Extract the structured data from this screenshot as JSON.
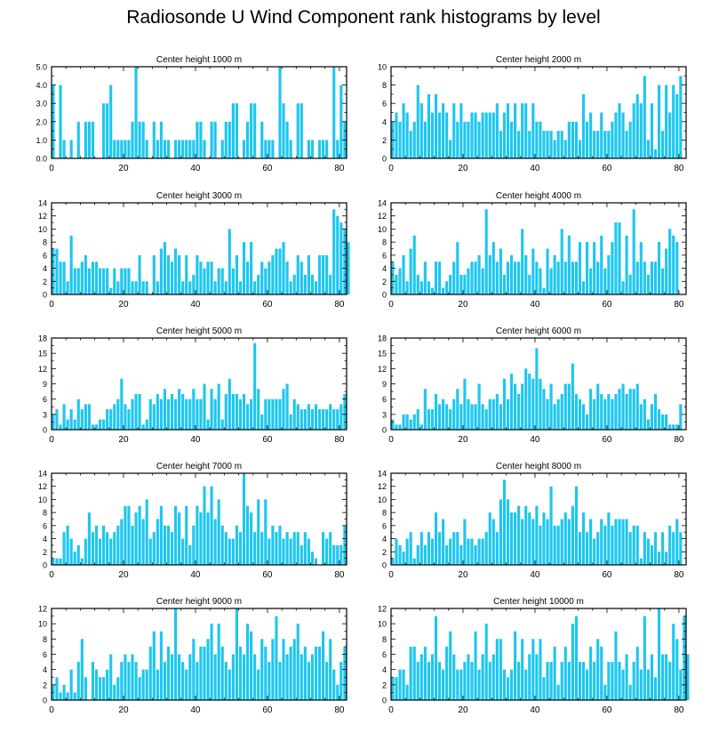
{
  "figure": {
    "title": "Radiosonde U Wind Component rank histograms by level",
    "bar_color": "#1ec6ef"
  },
  "chart_data": [
    {
      "type": "bar",
      "title": "Center height 1000 m",
      "xlim": [
        0,
        82
      ],
      "ylim": [
        0,
        5
      ],
      "xticks": [
        0,
        20,
        40,
        60,
        80
      ],
      "yticks": [
        0,
        1,
        2,
        3,
        4,
        5
      ],
      "ytick_labels": [
        "0.0",
        "1.0",
        "2.0",
        "3.0",
        "4.0",
        "5.0"
      ],
      "values": [
        4,
        0,
        4,
        1,
        0,
        1,
        0,
        2,
        0,
        2,
        2,
        2,
        0,
        0,
        3,
        3,
        4,
        1,
        1,
        1,
        1,
        1,
        2,
        5,
        2,
        2,
        1,
        0,
        2,
        1,
        2,
        1,
        1,
        0,
        1,
        1,
        1,
        1,
        1,
        1,
        2,
        2,
        1,
        0,
        2,
        2,
        0,
        1,
        2,
        2,
        3,
        3,
        0,
        1,
        2,
        3,
        3,
        0,
        2,
        1,
        1,
        1,
        0,
        5,
        3,
        2,
        1,
        0,
        3,
        3,
        0,
        1,
        1,
        0,
        1,
        1,
        1,
        0,
        5,
        1,
        4,
        2
      ]
    },
    {
      "type": "bar",
      "title": "Center height 2000 m",
      "xlim": [
        0,
        82
      ],
      "ylim": [
        0,
        10
      ],
      "xticks": [
        0,
        20,
        40,
        60,
        80
      ],
      "yticks": [
        0,
        2,
        4,
        6,
        8,
        10
      ],
      "values": [
        4,
        5,
        4,
        6,
        5,
        3,
        4,
        8,
        6,
        4,
        7,
        5,
        7,
        5,
        6,
        5,
        2,
        6,
        4,
        6,
        4,
        4,
        5,
        5,
        4,
        5,
        5,
        5,
        5,
        6,
        3,
        5,
        6,
        4,
        6,
        3,
        6,
        6,
        3,
        6,
        4,
        4,
        3,
        3,
        3,
        2,
        3,
        3,
        2,
        4,
        4,
        4,
        2,
        7,
        4,
        5,
        3,
        3,
        5,
        3,
        3,
        4,
        5,
        6,
        5,
        3,
        4,
        6,
        7,
        6,
        9,
        2,
        6,
        1,
        8,
        3,
        8,
        5,
        8,
        7,
        9
      ]
    },
    {
      "type": "bar",
      "title": "Center height 3000 m",
      "xlim": [
        0,
        82
      ],
      "ylim": [
        0,
        14
      ],
      "xticks": [
        0,
        20,
        40,
        60,
        80
      ],
      "yticks": [
        0,
        2,
        4,
        6,
        8,
        10,
        12,
        14
      ],
      "values": [
        7,
        7,
        5,
        5,
        2,
        9,
        4,
        4,
        5,
        6,
        4,
        5,
        5,
        4,
        4,
        4,
        1,
        4,
        2,
        4,
        4,
        4,
        2,
        2,
        6,
        2,
        2,
        0,
        6,
        2,
        7,
        8,
        6,
        5,
        7,
        6,
        2,
        6,
        2,
        3,
        6,
        5,
        4,
        5,
        5,
        2,
        4,
        4,
        2,
        10,
        4,
        6,
        2,
        8,
        5,
        8,
        2,
        3,
        5,
        4,
        5,
        6,
        7,
        7,
        8,
        5,
        2,
        3,
        6,
        5,
        3,
        6,
        3,
        2,
        6,
        6,
        6,
        3,
        13,
        12,
        11,
        10,
        8
      ]
    },
    {
      "type": "bar",
      "title": "Center height 4000 m",
      "xlim": [
        0,
        82
      ],
      "ylim": [
        0,
        14
      ],
      "xticks": [
        0,
        20,
        40,
        60,
        80
      ],
      "yticks": [
        0,
        2,
        4,
        6,
        8,
        10,
        12,
        14
      ],
      "values": [
        5,
        3,
        4,
        6,
        2,
        7,
        9,
        3,
        2,
        5,
        2,
        1,
        5,
        5,
        1,
        2,
        3,
        5,
        8,
        3,
        3,
        4,
        5,
        5,
        6,
        4,
        13,
        6,
        8,
        5,
        7,
        3,
        5,
        6,
        5,
        5,
        10,
        6,
        3,
        7,
        5,
        4,
        1,
        7,
        4,
        6,
        5,
        10,
        5,
        9,
        5,
        5,
        8,
        2,
        8,
        4,
        8,
        5,
        9,
        4,
        6,
        8,
        11,
        11,
        2,
        9,
        3,
        13,
        5,
        8,
        5,
        3,
        5,
        5,
        8,
        4,
        7,
        10,
        9,
        8
      ]
    },
    {
      "type": "bar",
      "title": "Center height 5000 m",
      "xlim": [
        0,
        82
      ],
      "ylim": [
        0,
        18
      ],
      "xticks": [
        0,
        20,
        40,
        60,
        80
      ],
      "yticks": [
        0,
        3,
        6,
        9,
        12,
        15,
        18
      ],
      "values": [
        3,
        4,
        1,
        5,
        2,
        4,
        2,
        6,
        4,
        5,
        5,
        1,
        1,
        2,
        2,
        4,
        4,
        5,
        6,
        10,
        5,
        4,
        6,
        7,
        7,
        1,
        2,
        6,
        5,
        7,
        6,
        8,
        6,
        7,
        6,
        8,
        7,
        6,
        6,
        8,
        6,
        6,
        9,
        2,
        8,
        6,
        9,
        2,
        7,
        10,
        7,
        7,
        6,
        7,
        5,
        6,
        17,
        8,
        3,
        6,
        6,
        6,
        6,
        6,
        8,
        9,
        3,
        6,
        5,
        4,
        4,
        5,
        4,
        5,
        4,
        4,
        4,
        5,
        4,
        4,
        5,
        7
      ]
    },
    {
      "type": "bar",
      "title": "Center height 6000 m",
      "xlim": [
        0,
        82
      ],
      "ylim": [
        0,
        18
      ],
      "xticks": [
        0,
        20,
        40,
        60,
        80
      ],
      "yticks": [
        0,
        3,
        6,
        9,
        12,
        15,
        18
      ],
      "values": [
        2,
        1,
        1,
        3,
        3,
        2,
        3,
        4,
        1,
        8,
        4,
        4,
        7,
        5,
        6,
        5,
        4,
        6,
        8,
        5,
        10,
        6,
        5,
        5,
        9,
        5,
        4,
        6,
        6,
        7,
        5,
        10,
        6,
        11,
        9,
        7,
        9,
        12,
        11,
        10,
        16,
        10,
        8,
        6,
        9,
        5,
        6,
        7,
        9,
        9,
        13,
        7,
        6,
        5,
        3,
        8,
        6,
        9,
        7,
        6,
        7,
        6,
        7,
        8,
        9,
        7,
        8,
        8,
        9,
        5,
        6,
        2,
        5,
        7,
        4,
        3,
        3,
        1,
        1,
        1,
        5
      ]
    },
    {
      "type": "bar",
      "title": "Center height 7000 m",
      "xlim": [
        0,
        82
      ],
      "ylim": [
        0,
        14
      ],
      "xticks": [
        0,
        20,
        40,
        60,
        80
      ],
      "yticks": [
        0,
        2,
        4,
        6,
        8,
        10,
        12,
        14
      ],
      "values": [
        1,
        1,
        1,
        5,
        6,
        4,
        2,
        3,
        1,
        4,
        8,
        5,
        6,
        4,
        6,
        5,
        4,
        5,
        6,
        7,
        9,
        9,
        6,
        8,
        9,
        7,
        10,
        4,
        5,
        7,
        9,
        6,
        6,
        5,
        9,
        8,
        4,
        9,
        3,
        6,
        9,
        8,
        12,
        8,
        12,
        7,
        10,
        6,
        5,
        4,
        4,
        6,
        5,
        14,
        9,
        8,
        5,
        10,
        5,
        10,
        4,
        6,
        5,
        6,
        4,
        5,
        4,
        5,
        5,
        3,
        5,
        4,
        2,
        1,
        0,
        5,
        4,
        5,
        3,
        3,
        3,
        6
      ]
    },
    {
      "type": "bar",
      "title": "Center height 8000 m",
      "xlim": [
        0,
        82
      ],
      "ylim": [
        0,
        14
      ],
      "xticks": [
        0,
        20,
        40,
        60,
        80
      ],
      "yticks": [
        0,
        2,
        4,
        6,
        8,
        10,
        12,
        14
      ],
      "values": [
        1,
        4,
        3,
        2,
        4,
        5,
        1,
        3,
        5,
        3,
        5,
        4,
        8,
        5,
        7,
        3,
        4,
        5,
        5,
        3,
        7,
        4,
        4,
        3,
        4,
        4,
        5,
        8,
        7,
        5,
        10,
        13,
        10,
        8,
        8,
        9,
        7,
        9,
        8,
        7,
        9,
        6,
        8,
        7,
        12,
        6,
        6,
        7,
        8,
        7,
        9,
        12,
        5,
        8,
        5,
        7,
        4,
        5,
        7,
        6,
        8,
        6,
        7,
        7,
        7,
        7,
        5,
        6,
        6,
        1,
        5,
        4,
        3,
        5,
        2,
        5,
        2,
        6,
        5,
        7,
        5
      ]
    },
    {
      "type": "bar",
      "title": "Center height 9000 m",
      "xlim": [
        0,
        82
      ],
      "ylim": [
        0,
        12
      ],
      "xticks": [
        0,
        20,
        40,
        60,
        80
      ],
      "yticks": [
        0,
        2,
        4,
        6,
        8,
        10,
        12
      ],
      "values": [
        2,
        3,
        1,
        2,
        1,
        4,
        1,
        5,
        8,
        3,
        0,
        5,
        4,
        3,
        3,
        4,
        6,
        2,
        3,
        5,
        6,
        5,
        6,
        5,
        3,
        4,
        4,
        7,
        9,
        4,
        9,
        5,
        7,
        6,
        12,
        6,
        5,
        4,
        6,
        8,
        5,
        7,
        7,
        8,
        10,
        6,
        10,
        7,
        5,
        4,
        6,
        12,
        7,
        6,
        10,
        9,
        6,
        4,
        8,
        7,
        5,
        8,
        11,
        5,
        8,
        6,
        7,
        8,
        10,
        6,
        7,
        5,
        6,
        7,
        7,
        9,
        5,
        8,
        4,
        2,
        5,
        7
      ]
    },
    {
      "type": "bar",
      "title": "Center height 10000 m",
      "xlim": [
        0,
        82
      ],
      "ylim": [
        0,
        12
      ],
      "xticks": [
        0,
        20,
        40,
        60,
        80
      ],
      "yticks": [
        0,
        2,
        4,
        6,
        8,
        10,
        12
      ],
      "values": [
        3,
        3,
        4,
        4,
        2,
        7,
        7,
        5,
        6,
        7,
        5,
        6,
        11,
        5,
        4,
        7,
        9,
        6,
        4,
        4,
        5,
        6,
        5,
        9,
        4,
        6,
        10,
        5,
        6,
        8,
        8,
        4,
        3,
        4,
        9,
        5,
        8,
        4,
        6,
        8,
        6,
        8,
        3,
        5,
        5,
        7,
        2,
        5,
        7,
        5,
        10,
        11,
        5,
        5,
        4,
        7,
        5,
        8,
        7,
        2,
        5,
        5,
        9,
        5,
        4,
        6,
        2,
        5,
        7,
        4,
        11,
        4,
        6,
        3,
        12,
        6,
        6,
        5,
        10,
        8,
        4,
        11,
        6
      ]
    }
  ]
}
